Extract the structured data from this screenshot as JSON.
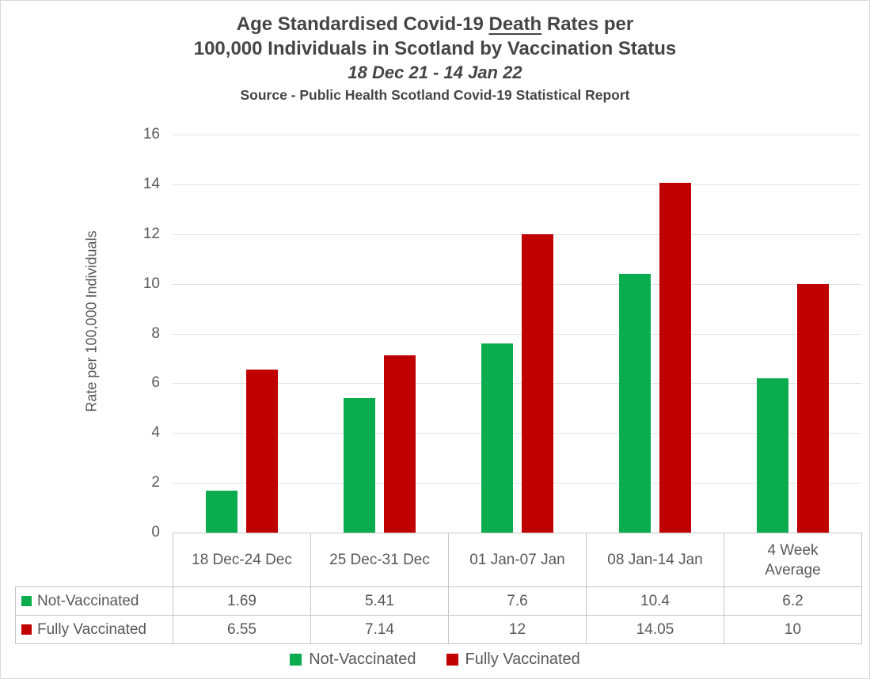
{
  "title": {
    "line1_prefix": "Age Standardised Covid-19 ",
    "line1_underlined": "Death",
    "line1_suffix": " Rates per",
    "line2": "100,000 Individuals in Scotland by Vaccination Status",
    "line3": "18 Dec 21 - 14 Jan 22",
    "line4": "Source - Public Health Scotland Covid-19 Statistical Report"
  },
  "chart_data": {
    "type": "bar",
    "categories": [
      "18 Dec-24 Dec",
      "25 Dec-31 Dec",
      "01 Jan-07 Jan",
      "08 Jan-14 Jan",
      "4 Week Average"
    ],
    "category_header_lines": [
      [
        "18 Dec-24 Dec"
      ],
      [
        "25 Dec-31 Dec"
      ],
      [
        "01 Jan-07 Jan"
      ],
      [
        "08 Jan-14 Jan"
      ],
      [
        "4 Week",
        "Average"
      ]
    ],
    "series": [
      {
        "name": "Not-Vaccinated",
        "color": "#0bac4e",
        "values": [
          1.69,
          5.41,
          7.6,
          10.4,
          6.2
        ]
      },
      {
        "name": "Fully Vaccinated",
        "color": "#c00000",
        "values": [
          6.55,
          7.14,
          12,
          14.05,
          10
        ]
      }
    ],
    "title": "Age Standardised Covid-19 Death Rates per 100,000 Individuals in Scotland by Vaccination Status 18 Dec 21 - 14 Jan 22",
    "xlabel": "",
    "ylabel": "Rate per 100,000 Individuals",
    "ylim": [
      0,
      16
    ],
    "ytick_step": 2,
    "grid": true,
    "legend_position": "bottom",
    "data_table": true
  },
  "colors": {
    "green": "#0bac4e",
    "red": "#c00000",
    "title_text": "#454545",
    "axis_text": "#595959",
    "border": "#c7c7c7",
    "gridline": "#e4e4e4"
  }
}
